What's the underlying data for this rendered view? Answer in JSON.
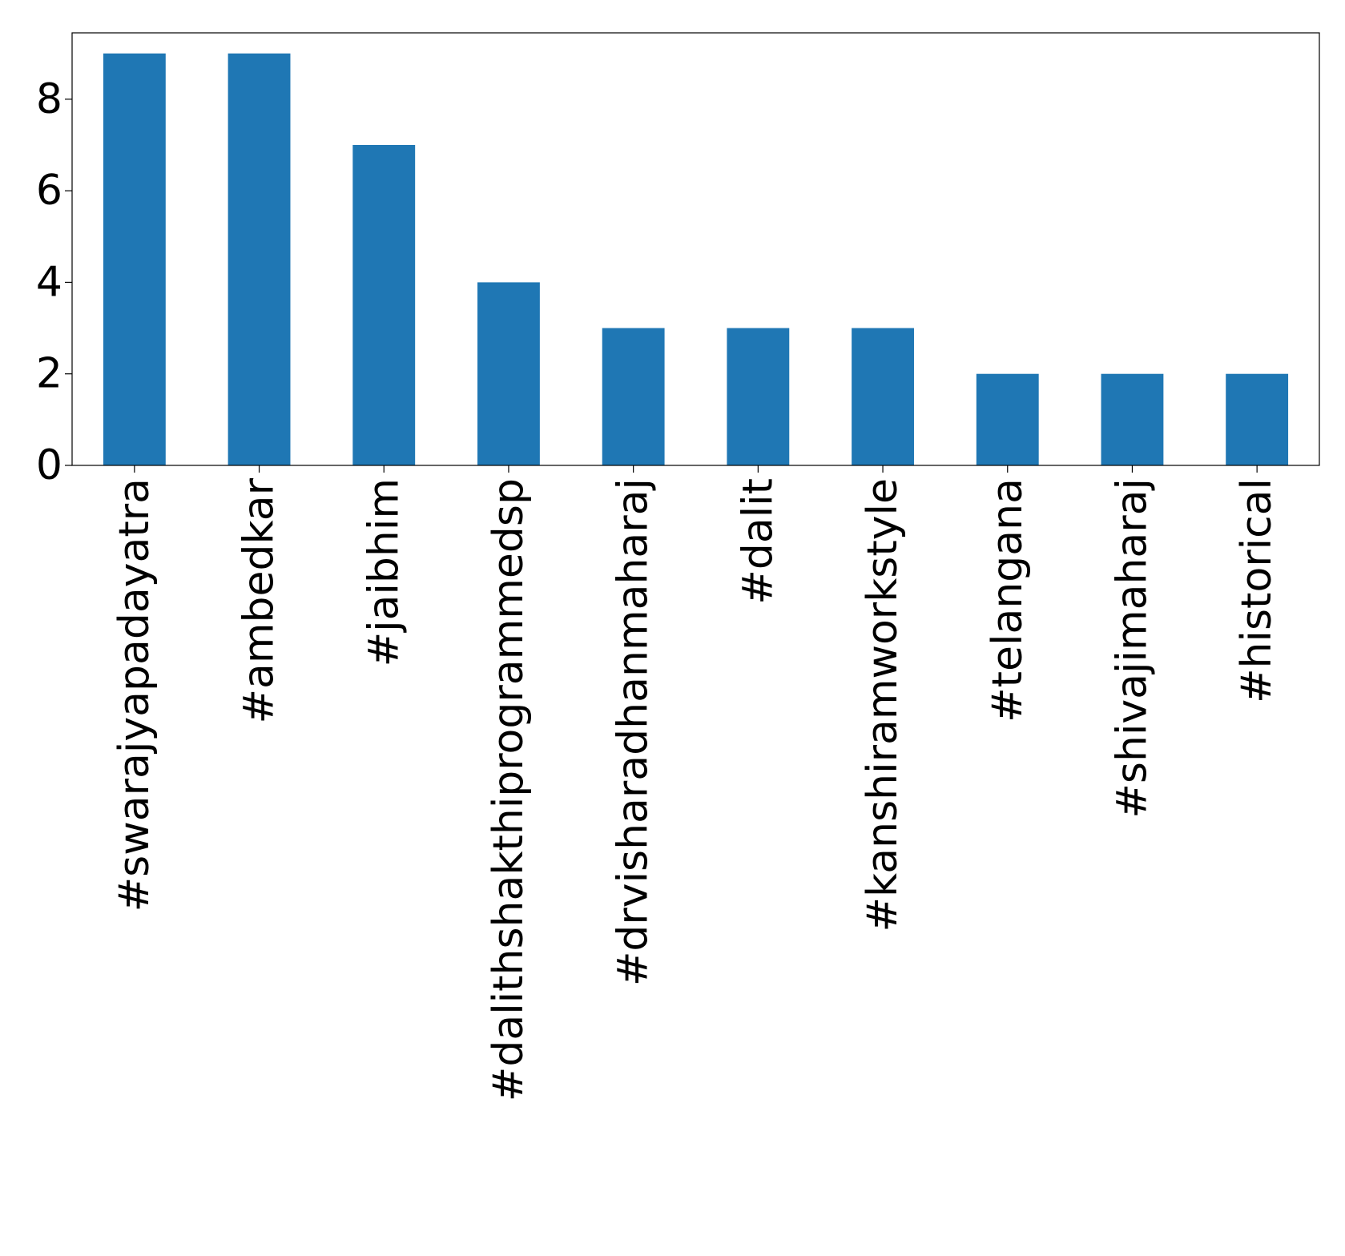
{
  "chart_data": {
    "type": "bar",
    "title": "",
    "xlabel": "",
    "ylabel": "",
    "categories": [
      "#swarajyapadayatra",
      "#ambedkar",
      "#jaibhim",
      "#dalithshakthiprogrammedsp",
      "#drvisharadhanmaharaj",
      "#dalit",
      "#kanshiramworkstyle",
      "#telangana",
      "#shivajimaharaj",
      "#historical"
    ],
    "values": [
      9,
      9,
      7,
      4,
      3,
      3,
      3,
      2,
      2,
      2
    ],
    "yticks": [
      0,
      2,
      4,
      6,
      8
    ],
    "ylim": [
      0,
      9.45
    ],
    "grid": false,
    "legend": "none",
    "bar_color": "#1f77b4",
    "axis_color": "#000000"
  }
}
